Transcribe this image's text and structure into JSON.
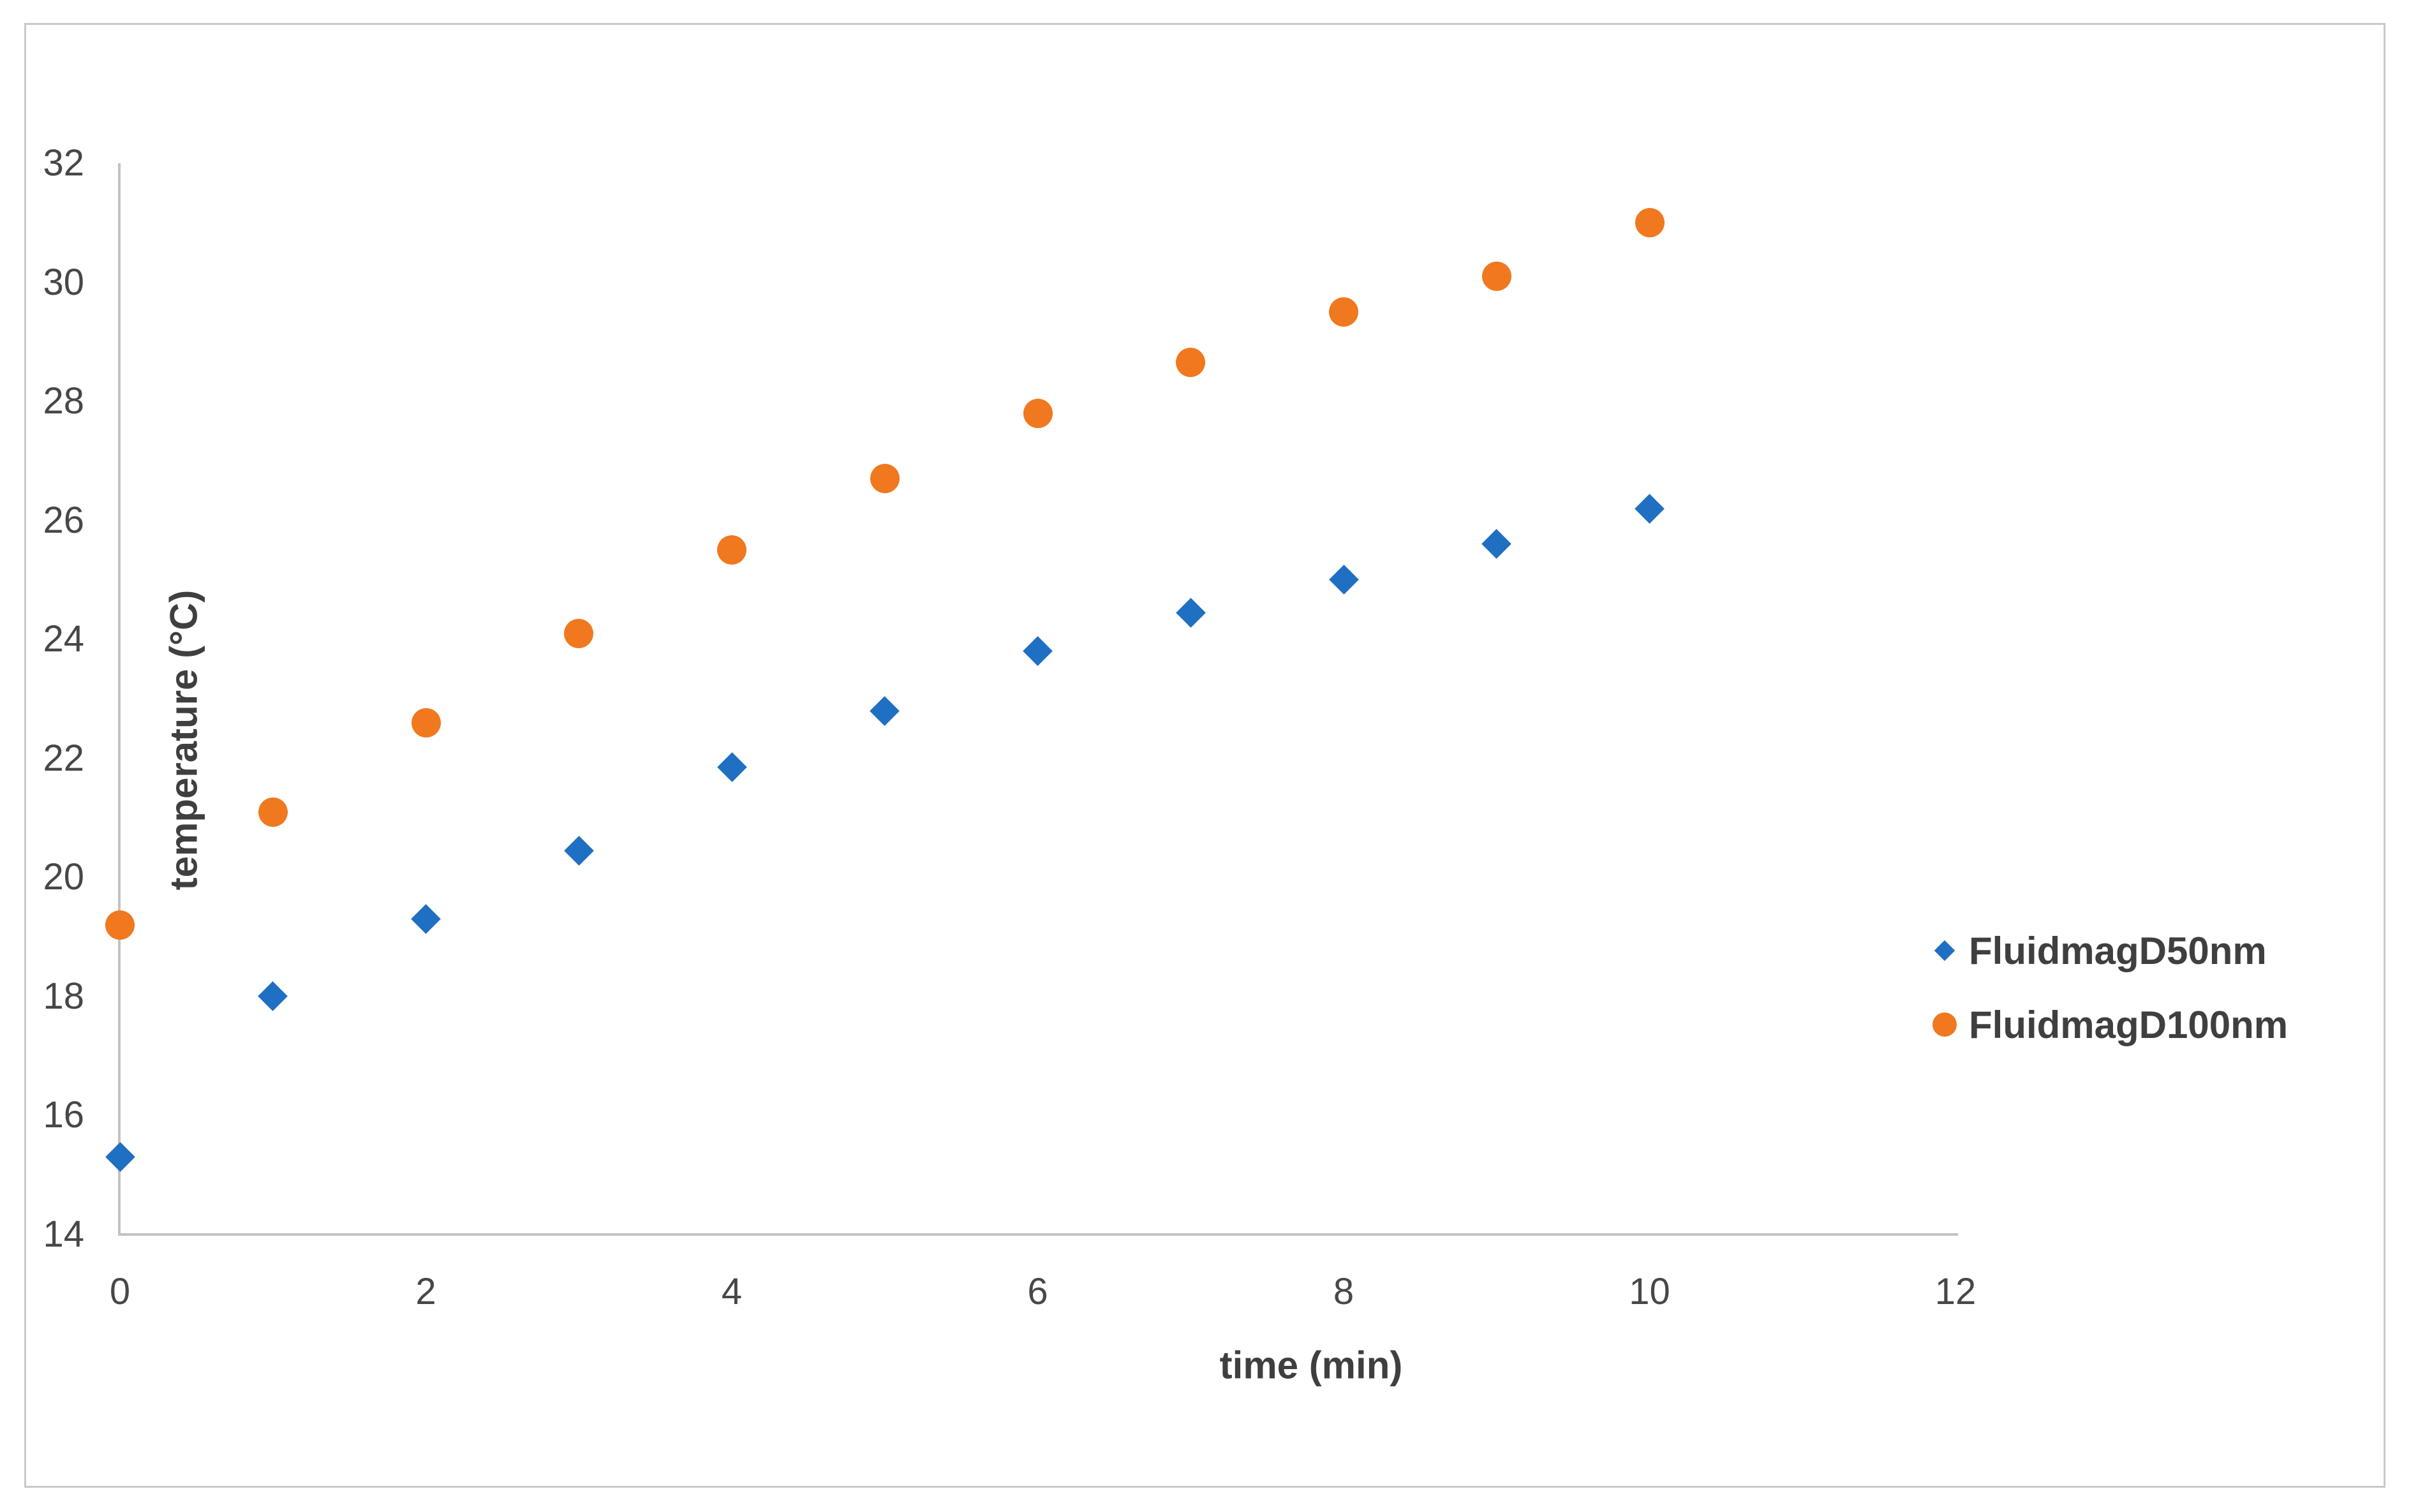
{
  "chart_data": {
    "type": "scatter",
    "title": "",
    "xlabel": "time (min)",
    "ylabel": "temperature (°C)",
    "x": [
      0,
      1,
      2,
      3,
      4,
      5,
      6,
      7,
      8,
      9,
      10
    ],
    "series": [
      {
        "name": "FluidmagD50nm",
        "marker": "diamond",
        "color": "#1F6FC2",
        "values": [
          15.3,
          18.0,
          19.3,
          20.45,
          21.85,
          22.8,
          23.8,
          24.45,
          25.0,
          25.6,
          26.2
        ]
      },
      {
        "name": "FluidmagD100nm",
        "marker": "circle",
        "color": "#F0781E",
        "values": [
          19.2,
          21.1,
          22.6,
          24.1,
          25.5,
          26.7,
          27.8,
          28.65,
          29.5,
          30.1,
          31.0
        ]
      }
    ],
    "x_ticks": [
      0,
      2,
      4,
      6,
      8,
      10,
      12
    ],
    "y_ticks": [
      32,
      30,
      28,
      26,
      24,
      22,
      20,
      18,
      16,
      14
    ],
    "xlim": [
      0,
      12
    ],
    "ylim": [
      14,
      32
    ],
    "grid": false,
    "legend_position": "right",
    "axis_color": "#C2C2C2",
    "border_color": "#C9C9C9",
    "tick_text_color": "#474747",
    "title_text_color": "#3F3F3F",
    "background_color": "#FFFFFF"
  }
}
